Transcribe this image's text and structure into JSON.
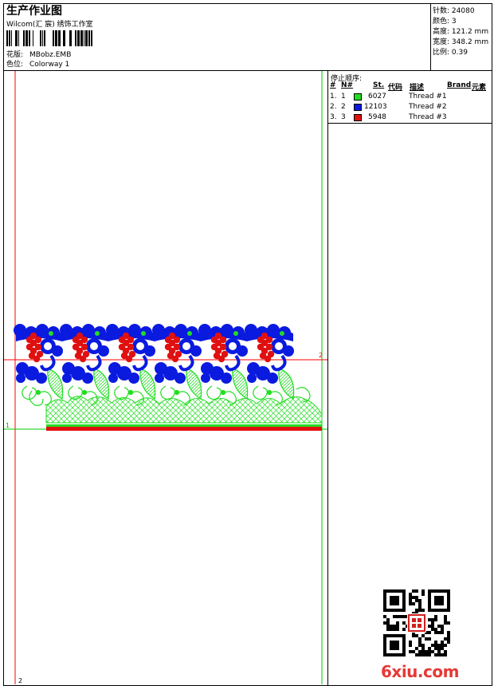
{
  "header": {
    "title": "生产作业图",
    "subtitle": "Wilcom(汇 宸) 绣饰工作室",
    "design_label": "花版:",
    "design_value": "MBobz.EMB",
    "colorway_label": "色位:",
    "colorway_value": "Colorway 1"
  },
  "stats": [
    {
      "label": "针数:",
      "value": "24080"
    },
    {
      "label": "颜色:",
      "value": "3"
    },
    {
      "label": "高度:",
      "value": "121.2 mm"
    },
    {
      "label": "宽度:",
      "value": "348.2 mm"
    },
    {
      "label": "比例:",
      "value": "0.39"
    }
  ],
  "stop_sequence": {
    "heading": "停止顺序:",
    "columns": [
      "#",
      "N#",
      "St.",
      "代码",
      "描述",
      "Brand",
      "元素"
    ],
    "rows": [
      {
        "num": "1.",
        "n": "1",
        "color": "#22dd22",
        "code": "6027",
        "desc": "Thread #1"
      },
      {
        "num": "2.",
        "n": "2",
        "color": "#0a1adf",
        "code": "12103",
        "desc": "Thread #2"
      },
      {
        "num": "3.",
        "n": "3",
        "color": "#e01010",
        "code": "5948",
        "desc": "Thread #3"
      }
    ]
  },
  "guides": {
    "h1": "1",
    "h2": "2",
    "v2": "2"
  },
  "colors": {
    "green": "#22dd22",
    "blue": "#0a1adf",
    "red": "#e01010",
    "guide_red": "#ff0000",
    "guide_green": "#00cc00"
  },
  "watermark": "6xiu.com",
  "icons": [
    "barcode-icon",
    "qr-code-icon",
    "seal-stamp-icon"
  ]
}
